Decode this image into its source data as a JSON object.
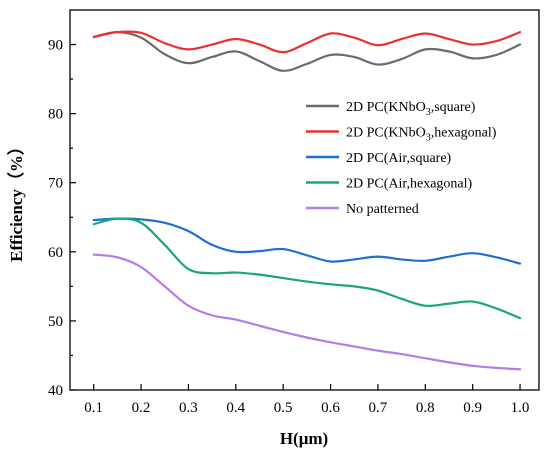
{
  "chart_data": {
    "type": "line",
    "xlabel": "H(μm)",
    "ylabel": "Efficiency（%）",
    "xlim": [
      0.05,
      1.04
    ],
    "ylim": [
      40,
      95
    ],
    "x_ticks": [
      "0.1",
      "0.2",
      "0.3",
      "0.4",
      "0.5",
      "0.6",
      "0.7",
      "0.8",
      "0.9",
      "1.0"
    ],
    "y_ticks": [
      "40",
      "50",
      "60",
      "70",
      "80",
      "90"
    ],
    "grid": false,
    "legend_position": "center-right",
    "series": [
      {
        "name_parts": [
          "2D PC(KNbO",
          "3",
          ",square)"
        ],
        "color": "#6b6b6b",
        "x": [
          0.1,
          0.15,
          0.2,
          0.25,
          0.3,
          0.35,
          0.4,
          0.45,
          0.5,
          0.55,
          0.6,
          0.65,
          0.7,
          0.75,
          0.8,
          0.85,
          0.9,
          0.95,
          1.0
        ],
        "values": [
          91.1,
          91.8,
          91.0,
          88.6,
          87.3,
          88.2,
          89.0,
          87.6,
          86.2,
          87.2,
          88.5,
          88.2,
          87.1,
          87.9,
          89.3,
          89.0,
          88.0,
          88.5,
          90.0
        ]
      },
      {
        "name_parts": [
          "2D PC(KNbO",
          "3",
          ",hexagonal)"
        ],
        "color": "#e8322f",
        "x": [
          0.1,
          0.15,
          0.2,
          0.25,
          0.3,
          0.35,
          0.4,
          0.45,
          0.5,
          0.55,
          0.6,
          0.65,
          0.7,
          0.75,
          0.8,
          0.85,
          0.9,
          0.95,
          1.0
        ],
        "values": [
          91.1,
          91.8,
          91.7,
          90.2,
          89.3,
          90.0,
          90.8,
          90.0,
          88.9,
          90.2,
          91.6,
          91.0,
          89.9,
          90.8,
          91.6,
          90.8,
          90.0,
          90.5,
          91.8
        ]
      },
      {
        "name_parts": [
          "2D PC(Air,square)"
        ],
        "color": "#1f6fd1",
        "x": [
          0.1,
          0.15,
          0.2,
          0.25,
          0.3,
          0.35,
          0.4,
          0.45,
          0.5,
          0.55,
          0.6,
          0.65,
          0.7,
          0.75,
          0.8,
          0.85,
          0.9,
          0.95,
          1.0
        ],
        "values": [
          64.6,
          64.8,
          64.7,
          64.2,
          63.0,
          61.0,
          60.0,
          60.1,
          60.4,
          59.5,
          58.6,
          58.9,
          59.3,
          58.9,
          58.7,
          59.3,
          59.8,
          59.2,
          58.3
        ]
      },
      {
        "name_parts": [
          "2D PC(Air,hexagonal)"
        ],
        "color": "#1ea672",
        "x": [
          0.1,
          0.15,
          0.2,
          0.25,
          0.3,
          0.35,
          0.4,
          0.45,
          0.5,
          0.55,
          0.6,
          0.65,
          0.7,
          0.75,
          0.8,
          0.85,
          0.9,
          0.95,
          1.0
        ],
        "values": [
          64.0,
          64.8,
          64.2,
          61.0,
          57.5,
          56.9,
          57.0,
          56.7,
          56.2,
          55.7,
          55.3,
          55.0,
          54.4,
          53.2,
          52.2,
          52.5,
          52.8,
          51.8,
          50.4
        ]
      },
      {
        "name_parts": [
          "No patterned"
        ],
        "color": "#b57be6",
        "x": [
          0.1,
          0.15,
          0.2,
          0.25,
          0.3,
          0.35,
          0.4,
          0.45,
          0.5,
          0.55,
          0.6,
          0.65,
          0.7,
          0.75,
          0.8,
          0.85,
          0.9,
          0.95,
          1.0
        ],
        "values": [
          59.6,
          59.2,
          57.8,
          55.0,
          52.2,
          50.8,
          50.2,
          49.3,
          48.4,
          47.6,
          46.9,
          46.3,
          45.7,
          45.2,
          44.6,
          44.0,
          43.5,
          43.2,
          43.0
        ]
      }
    ]
  }
}
